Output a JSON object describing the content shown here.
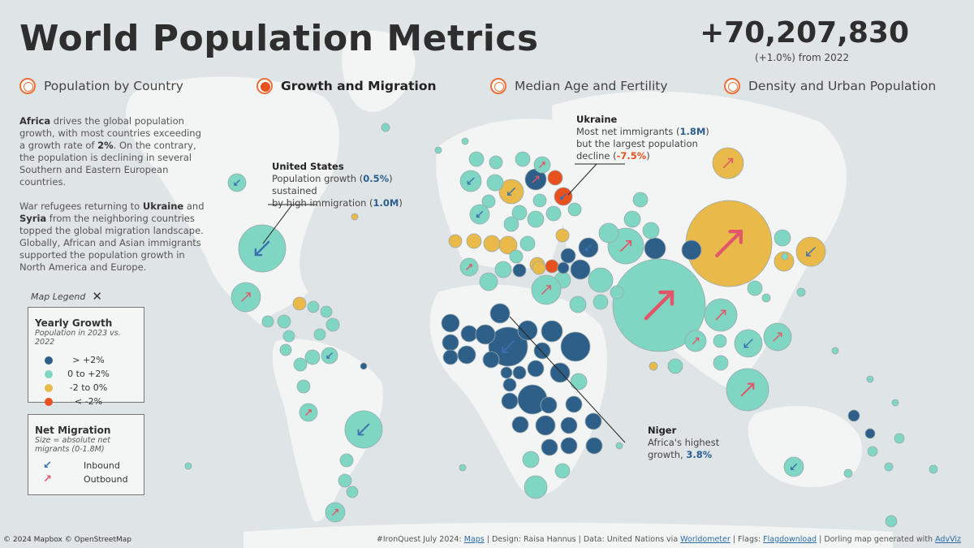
{
  "header": {
    "title": "World Population Metrics",
    "total_change": "+70,207,830",
    "change_pct": "(+1.0%)",
    "change_since": "from 2022"
  },
  "tabs": [
    {
      "label": "Population by Country",
      "active": false
    },
    {
      "label": "Growth and Migration",
      "active": true
    },
    {
      "label": "Median Age and Fertility",
      "active": false
    },
    {
      "label": "Density and Urban Population",
      "active": false
    }
  ],
  "narrative": {
    "p1_bold": "Africa",
    "p1_text": " drives the global population growth, with most countries exceeding a growth rate of ",
    "p1_rate": "2%",
    "p1_tail": ". On the contrary, the population is declining in several Southern and Eastern European countries.",
    "p2_a": "War refugees returning to ",
    "p2_ukraine": "Ukraine",
    "p2_and": " and ",
    "p2_syria": "Syria",
    "p2_tail": " from the neighboring countries topped the global migration landscape. Globally, African and Asian immigrants supported the population growth in North America and Europe."
  },
  "legend": {
    "toggle_label": "Map Legend",
    "close_symbol": "✕",
    "yearly": {
      "title": "Yearly Growth",
      "subtitle": "Population in 2023 vs. 2022",
      "items": [
        {
          "label": "> +2%",
          "color": "#2d5f88"
        },
        {
          "label": "0 to +2%",
          "color": "#7fd6c3"
        },
        {
          "label": "-2 to 0%",
          "color": "#e9b949"
        },
        {
          "label": "< -2%",
          "color": "#e8501e"
        }
      ]
    },
    "net": {
      "title": "Net Migration",
      "subtitle": "Size = absolute net migrants (0-1.8M)",
      "items": [
        {
          "label": "Inbound",
          "arrow": "↙",
          "color": "#3a6fb0"
        },
        {
          "label": "Outbound",
          "arrow": "↗",
          "color": "#e2566a"
        }
      ]
    }
  },
  "annotations": {
    "us": {
      "country": "United States",
      "l1a": "Population growth (",
      "growth": "0.5%",
      "l1b": ") sustained",
      "l2a": "by high immigration (",
      "immigration": "1.0M",
      "l2b": ")"
    },
    "ukraine": {
      "country": "Ukraine",
      "l1a": "Most net immigrants (",
      "immigrants": "1.8M",
      "l1b": ")",
      "l2": "but the largest population",
      "l3a": "decline (",
      "decline": "-7.5%",
      "l3b": ")"
    },
    "niger": {
      "country": "Niger",
      "l1": "Africa's highest",
      "l2a": "growth, ",
      "growth": "3.8%"
    }
  },
  "footer": {
    "copyright": "© 2024 Mapbox © OpenStreetMap",
    "credit_a": "#IronQuest July 2024: ",
    "maps_link": "Maps",
    "credit_b": " | Design: Raisa Hannus | Data: United Nations via ",
    "worldometer_link": "Worldometer",
    "credit_c": " | Flags: ",
    "flag_link": "Flagdownload",
    "credit_d": " | Dorling map generated with ",
    "advviz_link": "AdvViz"
  },
  "colors": {
    "high": "#2d5f88",
    "mid": "#7fd6c3",
    "low": "#e9b949",
    "neg": "#e8501e",
    "inbound": "#3a6fb0",
    "outbound": "#e2566a",
    "land": "#f3f4f4",
    "ocean": "#dfe5e7"
  }
}
